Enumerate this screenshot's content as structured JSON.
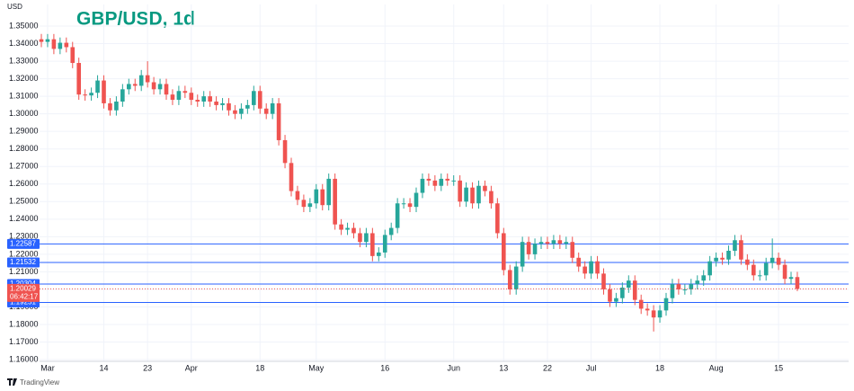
{
  "chart_data": {
    "type": "candlestick",
    "title": "GBP/USD, 1d",
    "y_axis_label": "USD",
    "branding": "TradingView",
    "up_color": "#26a69a",
    "down_color": "#ef5350",
    "grid": true,
    "ylim": [
      1.159,
      1.3623
    ],
    "yticks": [
      {
        "value": 1.16,
        "label": "1.16000"
      },
      {
        "value": 1.17,
        "label": "1.17000"
      },
      {
        "value": 1.18,
        "label": "1.18000"
      },
      {
        "value": 1.19,
        "label": "1.19000"
      },
      {
        "value": 1.2,
        "label": "1.20000"
      },
      {
        "value": 1.21,
        "label": "1.21000"
      },
      {
        "value": 1.22,
        "label": "1.22000"
      },
      {
        "value": 1.23,
        "label": "1.23000"
      },
      {
        "value": 1.24,
        "label": "1.24000"
      },
      {
        "value": 1.25,
        "label": "1.25000"
      },
      {
        "value": 1.26,
        "label": "1.26000"
      },
      {
        "value": 1.27,
        "label": "1.27000"
      },
      {
        "value": 1.28,
        "label": "1.28000"
      },
      {
        "value": 1.29,
        "label": "1.29000"
      },
      {
        "value": 1.3,
        "label": "1.30000"
      },
      {
        "value": 1.31,
        "label": "1.31000"
      },
      {
        "value": 1.32,
        "label": "1.32000"
      },
      {
        "value": 1.33,
        "label": "1.33000"
      },
      {
        "value": 1.34,
        "label": "1.34000"
      },
      {
        "value": 1.35,
        "label": "1.35000"
      }
    ],
    "levels": [
      1.22587,
      1.21532,
      1.20304,
      1.19251
    ],
    "level_color": "#2962ff",
    "countdown": "06:42:17",
    "categories": [
      null,
      "Mar",
      null,
      null,
      null,
      null,
      null,
      null,
      null,
      null,
      "14",
      null,
      null,
      null,
      null,
      null,
      null,
      "23",
      null,
      null,
      null,
      null,
      null,
      null,
      "Apr",
      null,
      null,
      null,
      null,
      null,
      null,
      null,
      null,
      null,
      null,
      "18",
      null,
      null,
      null,
      null,
      null,
      null,
      null,
      null,
      "May",
      null,
      null,
      null,
      null,
      null,
      null,
      null,
      null,
      null,
      null,
      "16",
      null,
      null,
      null,
      null,
      null,
      null,
      null,
      null,
      null,
      null,
      "Jun",
      null,
      null,
      null,
      null,
      null,
      null,
      null,
      "13",
      null,
      null,
      null,
      null,
      null,
      null,
      "22",
      null,
      null,
      null,
      null,
      null,
      null,
      "Jul",
      null,
      null,
      null,
      null,
      null,
      null,
      null,
      null,
      null,
      null,
      "18",
      null,
      null,
      null,
      null,
      null,
      null,
      null,
      null,
      "Aug",
      null,
      null,
      null,
      null,
      null,
      null,
      null,
      null,
      null,
      "15",
      null,
      null,
      null
    ],
    "open": [
      1.3425,
      1.341,
      1.3425,
      1.337,
      1.3405,
      1.338,
      1.329,
      1.311,
      1.3105,
      1.312,
      1.319,
      1.306,
      1.302,
      1.307,
      1.314,
      1.317,
      1.316,
      1.322,
      1.318,
      1.314,
      1.317,
      1.311,
      1.308,
      1.313,
      1.312,
      1.308,
      1.307,
      1.31,
      1.307,
      1.305,
      1.306,
      1.302,
      1.3,
      1.303,
      1.305,
      1.313,
      1.303,
      1.3,
      1.306,
      1.285,
      1.272,
      1.256,
      1.251,
      1.247,
      1.249,
      1.257,
      1.248,
      1.263,
      1.237,
      1.234,
      1.235,
      1.232,
      1.227,
      1.232,
      1.219,
      1.221,
      1.231,
      1.235,
      1.249,
      1.249,
      1.247,
      1.255,
      1.263,
      1.262,
      1.259,
      1.263,
      1.262,
      1.262,
      1.25,
      1.258,
      1.249,
      1.259,
      1.256,
      1.249,
      1.232,
      1.211,
      1.2,
      1.213,
      1.227,
      1.22,
      1.226,
      1.227,
      1.226,
      1.228,
      1.226,
      1.227,
      1.218,
      1.213,
      1.209,
      1.216,
      1.209,
      1.2,
      1.193,
      1.195,
      1.201,
      1.205,
      1.194,
      1.189,
      1.188,
      1.184,
      1.188,
      1.195,
      1.203,
      1.2,
      1.2,
      1.203,
      1.205,
      1.208,
      1.216,
      1.218,
      1.217,
      1.222,
      1.228,
      1.217,
      1.214,
      1.208,
      1.208,
      1.215,
      1.218,
      1.214,
      1.206,
      1.207
    ],
    "high": [
      1.3455,
      1.3455,
      1.3455,
      1.3435,
      1.3435,
      1.341,
      1.332,
      1.314,
      1.315,
      1.322,
      1.322,
      1.309,
      1.31,
      1.317,
      1.32,
      1.32,
      1.325,
      1.33,
      1.321,
      1.32,
      1.32,
      1.314,
      1.316,
      1.316,
      1.315,
      1.311,
      1.313,
      1.313,
      1.31,
      1.309,
      1.309,
      1.305,
      1.306,
      1.308,
      1.316,
      1.316,
      1.306,
      1.309,
      1.309,
      1.288,
      1.275,
      1.259,
      1.254,
      1.252,
      1.26,
      1.26,
      1.266,
      1.266,
      1.24,
      1.238,
      1.238,
      1.235,
      1.235,
      1.235,
      1.224,
      1.234,
      1.238,
      1.252,
      1.252,
      1.252,
      1.258,
      1.266,
      1.266,
      1.265,
      1.266,
      1.266,
      1.265,
      1.265,
      1.261,
      1.261,
      1.262,
      1.262,
      1.259,
      1.252,
      1.235,
      1.214,
      1.216,
      1.23,
      1.23,
      1.229,
      1.23,
      1.23,
      1.231,
      1.231,
      1.23,
      1.23,
      1.221,
      1.216,
      1.219,
      1.219,
      1.212,
      1.203,
      1.198,
      1.204,
      1.208,
      1.208,
      1.197,
      1.192,
      1.191,
      1.191,
      1.198,
      1.206,
      1.206,
      1.203,
      1.206,
      1.208,
      1.211,
      1.219,
      1.221,
      1.221,
      1.225,
      1.231,
      1.231,
      1.22,
      1.217,
      1.211,
      1.218,
      1.229,
      1.221,
      1.217,
      1.21,
      1.21
    ],
    "low": [
      1.338,
      1.338,
      1.334,
      1.334,
      1.335,
      1.326,
      1.308,
      1.3075,
      1.3075,
      1.309,
      1.303,
      1.299,
      1.299,
      1.304,
      1.311,
      1.313,
      1.313,
      1.315,
      1.311,
      1.311,
      1.308,
      1.305,
      1.305,
      1.309,
      1.305,
      1.304,
      1.304,
      1.304,
      1.302,
      1.302,
      1.299,
      1.297,
      1.297,
      1.3,
      1.302,
      1.3,
      1.297,
      1.297,
      1.282,
      1.269,
      1.253,
      1.248,
      1.244,
      1.244,
      1.246,
      1.245,
      1.245,
      1.234,
      1.231,
      1.231,
      1.229,
      1.224,
      1.224,
      1.216,
      1.216,
      1.218,
      1.228,
      1.232,
      1.246,
      1.244,
      1.244,
      1.252,
      1.259,
      1.256,
      1.256,
      1.259,
      1.259,
      1.247,
      1.247,
      1.246,
      1.246,
      1.253,
      1.246,
      1.229,
      1.208,
      1.197,
      1.197,
      1.21,
      1.217,
      1.217,
      1.223,
      1.223,
      1.223,
      1.223,
      1.223,
      1.215,
      1.21,
      1.206,
      1.206,
      1.206,
      1.197,
      1.19,
      1.19,
      1.192,
      1.198,
      1.191,
      1.186,
      1.185,
      1.176,
      1.181,
      1.185,
      1.192,
      1.197,
      1.197,
      1.197,
      1.2,
      1.202,
      1.205,
      1.213,
      1.214,
      1.214,
      1.219,
      1.214,
      1.211,
      1.205,
      1.205,
      1.205,
      1.212,
      1.211,
      1.203,
      1.203,
      1.199
    ],
    "close": [
      1.341,
      1.3425,
      1.337,
      1.3405,
      1.338,
      1.329,
      1.311,
      1.3105,
      1.312,
      1.319,
      1.306,
      1.302,
      1.307,
      1.314,
      1.317,
      1.316,
      1.322,
      1.318,
      1.314,
      1.317,
      1.311,
      1.308,
      1.313,
      1.312,
      1.308,
      1.307,
      1.31,
      1.307,
      1.305,
      1.306,
      1.302,
      1.3,
      1.303,
      1.305,
      1.313,
      1.303,
      1.3,
      1.306,
      1.285,
      1.272,
      1.256,
      1.251,
      1.247,
      1.249,
      1.257,
      1.248,
      1.263,
      1.237,
      1.234,
      1.235,
      1.232,
      1.227,
      1.232,
      1.219,
      1.221,
      1.231,
      1.235,
      1.249,
      1.249,
      1.247,
      1.255,
      1.263,
      1.262,
      1.259,
      1.263,
      1.262,
      1.262,
      1.25,
      1.258,
      1.249,
      1.259,
      1.256,
      1.249,
      1.232,
      1.211,
      1.2,
      1.213,
      1.227,
      1.22,
      1.226,
      1.227,
      1.226,
      1.228,
      1.226,
      1.227,
      1.218,
      1.213,
      1.209,
      1.216,
      1.209,
      1.2,
      1.193,
      1.195,
      1.201,
      1.205,
      1.194,
      1.189,
      1.188,
      1.184,
      1.188,
      1.195,
      1.203,
      1.2,
      1.2,
      1.203,
      1.205,
      1.208,
      1.216,
      1.218,
      1.217,
      1.222,
      1.228,
      1.217,
      1.214,
      1.208,
      1.208,
      1.215,
      1.218,
      1.214,
      1.206,
      1.207,
      1.20029
    ]
  }
}
